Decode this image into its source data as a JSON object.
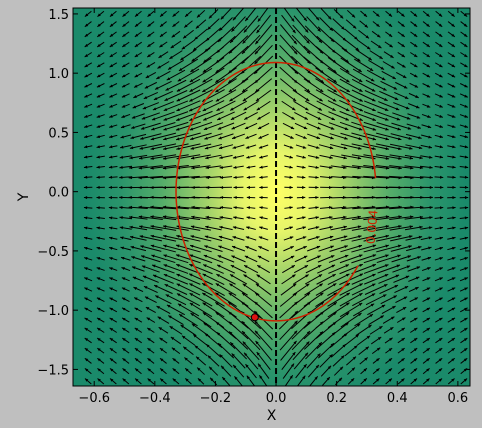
{
  "chart_data": {
    "type": "quiver",
    "title": "",
    "xlabel": "X",
    "ylabel": "Y",
    "xlim": [
      -0.67,
      0.64
    ],
    "ylim": [
      -1.64,
      1.55
    ],
    "x_ticks": [
      -0.6,
      -0.4,
      -0.2,
      0.0,
      0.2,
      0.4,
      0.6
    ],
    "x_tick_labels": [
      "−0.6",
      "−0.4",
      "−0.2",
      "0.0",
      "0.2",
      "0.4",
      "0.6"
    ],
    "y_ticks": [
      -1.5,
      -1.0,
      -0.5,
      0.0,
      0.5,
      1.0,
      1.5
    ],
    "y_tick_labels": [
      "−1.5",
      "−1.0",
      "−0.5",
      "0.0",
      "0.5",
      "1.0",
      "1.5"
    ],
    "background": {
      "type": "heatmap",
      "colormap": "summer-like",
      "center_color": "#ffff66",
      "edge_color": "#1a8a6a",
      "center": [
        0.0,
        0.0
      ],
      "x_spread": 0.33,
      "y_spread": 1.1
    },
    "vector_field": {
      "description_note": "arrows point away from x=0 axis, magnitude peaks near the contour",
      "grid_x_min": -0.62,
      "grid_x_max": 0.62,
      "grid_y_min": -1.6,
      "grid_y_max": 1.5,
      "nx": 31,
      "ny": 37,
      "color": "#000000"
    },
    "contour": {
      "label": "0.004",
      "color": "#cc2200",
      "center": [
        0.0,
        0.0
      ],
      "a": 0.33,
      "b": 1.09,
      "label_x": 0.33,
      "label_y": -0.3,
      "gap_y_start": -0.62,
      "gap_y_end": 0.1
    },
    "marker": {
      "x": -0.07,
      "y": -1.06,
      "color": "#dd1111"
    },
    "center_line": {
      "x": 0.0,
      "style": "dashed",
      "color": "#000000"
    }
  }
}
